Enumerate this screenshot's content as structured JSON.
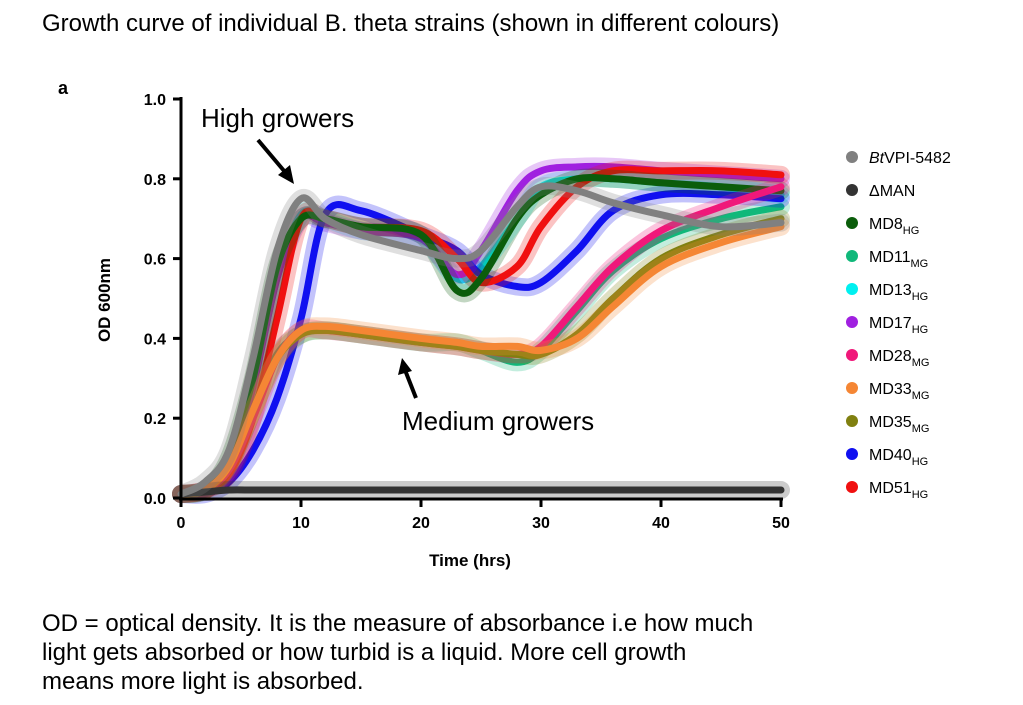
{
  "title": "Growth curve of individual B. theta strains (shown in different colours)",
  "panel_label": "a",
  "caption": [
    "OD = optical density. It is the measure of absorbance i.e how much",
    "light gets absorbed or how turbid is a liquid. More cell growth",
    "means more light is absorbed."
  ],
  "chart_data": {
    "type": "line",
    "xlabel": "Time (hrs)",
    "ylabel": "OD 600nm",
    "xlim": [
      0,
      50
    ],
    "ylim": [
      0,
      1.0
    ],
    "xticks": [
      "0",
      "10",
      "20",
      "30",
      "40",
      "50"
    ],
    "yticks": [
      "0.0",
      "0.2",
      "0.4",
      "0.6",
      "0.8",
      "1.0"
    ],
    "legend_position": "right",
    "annotations": [
      "High growers",
      "Medium growers"
    ],
    "x": [
      0,
      2,
      4,
      6,
      8,
      10,
      12,
      15,
      20,
      23,
      25,
      28,
      30,
      33,
      36,
      40,
      45,
      50
    ],
    "series": [
      {
        "name": "BtVPI-5482",
        "italic": "Bt",
        "rest": "VPI-5482",
        "sub": "",
        "color": "#808080",
        "values": [
          0.01,
          0.04,
          0.12,
          0.35,
          0.62,
          0.75,
          0.7,
          0.66,
          0.62,
          0.6,
          0.62,
          0.73,
          0.78,
          0.77,
          0.74,
          0.71,
          0.68,
          0.69
        ]
      },
      {
        "name": "ΔMAN",
        "italic": "",
        "rest": "ΔMAN",
        "sub": "",
        "color": "#333333",
        "values": [
          0.01,
          0.015,
          0.02,
          0.02,
          0.02,
          0.02,
          0.02,
          0.02,
          0.02,
          0.02,
          0.02,
          0.02,
          0.02,
          0.02,
          0.02,
          0.02,
          0.02,
          0.02
        ]
      },
      {
        "name": "MD8HG",
        "italic": "",
        "rest": "MD8",
        "sub": "HG",
        "color": "#0b5d0b",
        "values": [
          0.01,
          0.02,
          0.1,
          0.3,
          0.58,
          0.7,
          0.7,
          0.68,
          0.66,
          0.52,
          0.55,
          0.7,
          0.76,
          0.8,
          0.8,
          0.79,
          0.78,
          0.77
        ]
      },
      {
        "name": "MD11MG",
        "italic": "",
        "rest": "MD11",
        "sub": "MG",
        "color": "#10b87a",
        "values": [
          0.01,
          0.02,
          0.08,
          0.22,
          0.36,
          0.41,
          0.42,
          0.41,
          0.39,
          0.39,
          0.37,
          0.34,
          0.37,
          0.47,
          0.57,
          0.65,
          0.7,
          0.73
        ]
      },
      {
        "name": "MD13HG",
        "italic": "",
        "rest": "MD13",
        "sub": "HG",
        "color": "#00f0f0",
        "values": [
          0.01,
          0.02,
          0.08,
          0.28,
          0.55,
          0.71,
          0.7,
          0.67,
          0.65,
          0.55,
          0.58,
          0.7,
          0.78,
          0.8,
          0.8,
          0.79,
          0.78,
          0.76
        ]
      },
      {
        "name": "MD17HG",
        "italic": "",
        "rest": "MD17",
        "sub": "HG",
        "color": "#a020e0",
        "values": [
          0.01,
          0.02,
          0.08,
          0.28,
          0.55,
          0.7,
          0.69,
          0.67,
          0.65,
          0.56,
          0.62,
          0.77,
          0.82,
          0.83,
          0.83,
          0.82,
          0.81,
          0.8
        ]
      },
      {
        "name": "MD28MG",
        "italic": "",
        "rest": "MD28",
        "sub": "MG",
        "color": "#f0187a",
        "values": [
          0.01,
          0.02,
          0.07,
          0.2,
          0.35,
          0.42,
          0.42,
          0.41,
          0.39,
          0.38,
          0.37,
          0.36,
          0.38,
          0.48,
          0.58,
          0.67,
          0.73,
          0.78
        ]
      },
      {
        "name": "MD33MG",
        "italic": "",
        "rest": "MD33",
        "sub": "MG",
        "color": "#f58634",
        "values": [
          0.01,
          0.02,
          0.08,
          0.22,
          0.35,
          0.42,
          0.43,
          0.42,
          0.4,
          0.39,
          0.38,
          0.38,
          0.37,
          0.4,
          0.48,
          0.58,
          0.64,
          0.68
        ]
      },
      {
        "name": "MD35MG",
        "italic": "",
        "rest": "MD35",
        "sub": "MG",
        "color": "#808010",
        "values": [
          0.01,
          0.02,
          0.08,
          0.22,
          0.35,
          0.41,
          0.42,
          0.41,
          0.39,
          0.38,
          0.37,
          0.36,
          0.36,
          0.41,
          0.5,
          0.6,
          0.66,
          0.7
        ]
      },
      {
        "name": "MD40HG",
        "italic": "",
        "rest": "MD40",
        "sub": "HG",
        "color": "#1010f0",
        "values": [
          0.01,
          0.01,
          0.04,
          0.12,
          0.25,
          0.45,
          0.71,
          0.72,
          0.66,
          0.62,
          0.56,
          0.53,
          0.54,
          0.62,
          0.72,
          0.76,
          0.76,
          0.75
        ]
      },
      {
        "name": "MD51HG",
        "italic": "",
        "rest": "MD51",
        "sub": "HG",
        "color": "#f01010",
        "values": [
          0.01,
          0.02,
          0.06,
          0.2,
          0.45,
          0.7,
          0.7,
          0.68,
          0.67,
          0.6,
          0.54,
          0.58,
          0.68,
          0.78,
          0.82,
          0.82,
          0.82,
          0.81
        ]
      }
    ]
  }
}
